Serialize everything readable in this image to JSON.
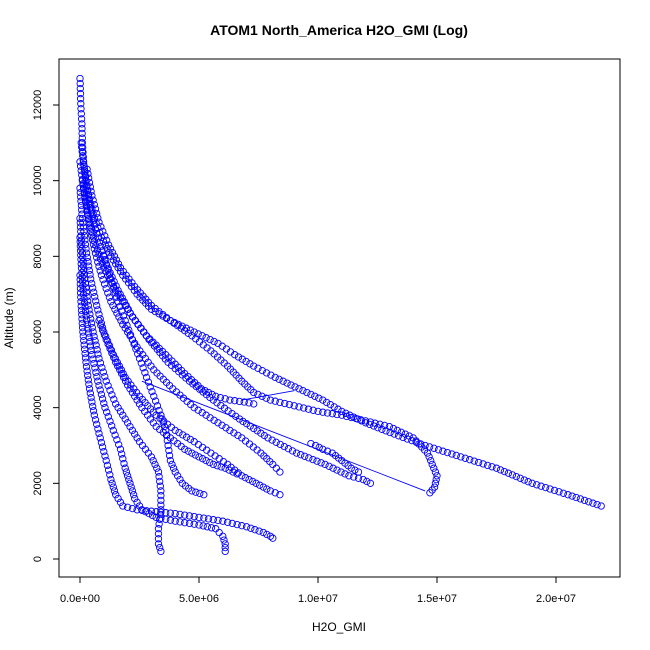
{
  "chart_data": {
    "type": "scatter",
    "title": "ATOM1 North_America H2O_GMI (Log)",
    "xlabel": "H2O_GMI",
    "ylabel": "Altitude (m)",
    "xlim": [
      0,
      22500000
    ],
    "ylim": [
      -400,
      13000
    ],
    "x_ticks": [
      0,
      5000000,
      10000000,
      15000000,
      20000000
    ],
    "x_tick_labels": [
      "0.0e+00",
      "5.0e+06",
      "1.0e+07",
      "1.5e+07",
      "2.0e+07"
    ],
    "y_ticks": [
      0,
      2000,
      4000,
      6000,
      8000,
      10000,
      12000
    ],
    "y_tick_labels": [
      "0",
      "2000",
      "4000",
      "6000",
      "8000",
      "10000",
      "12000"
    ],
    "grid": false,
    "marker": "open-circle",
    "color": "#0000ff",
    "series": [
      {
        "points": [
          [
            0,
            12700
          ],
          [
            20000,
            12300
          ],
          [
            40000,
            11900
          ],
          [
            80000,
            11500
          ],
          [
            100000,
            11000
          ],
          [
            150000,
            10500
          ],
          [
            250000,
            10000
          ],
          [
            400000,
            9500
          ],
          [
            600000,
            9000
          ],
          [
            900000,
            8500
          ],
          [
            1300000,
            8000
          ],
          [
            1800000,
            7500
          ],
          [
            2400000,
            7000
          ],
          [
            3000000,
            6600
          ],
          [
            3800000,
            6300
          ],
          [
            4800000,
            6000
          ],
          [
            5800000,
            5700
          ],
          [
            6500000,
            5400
          ],
          [
            7300000,
            5100
          ],
          [
            8200000,
            4800
          ],
          [
            9200000,
            4500
          ],
          [
            10200000,
            4200
          ],
          [
            11000000,
            3900
          ],
          [
            12000000,
            3600
          ],
          [
            13200000,
            3300
          ],
          [
            14500000,
            3000
          ],
          [
            16000000,
            2700
          ],
          [
            17500000,
            2400
          ],
          [
            19000000,
            2000
          ],
          [
            20500000,
            1700
          ],
          [
            21900000,
            1400
          ]
        ]
      },
      {
        "points": [
          [
            50000,
            11000
          ],
          [
            200000,
            10200
          ],
          [
            400000,
            9400
          ],
          [
            700000,
            8600
          ],
          [
            1100000,
            7800
          ],
          [
            1600000,
            7100
          ],
          [
            2200000,
            6400
          ],
          [
            2900000,
            5800
          ],
          [
            3700000,
            5200
          ],
          [
            4600000,
            4700
          ],
          [
            5600000,
            4200
          ],
          [
            6700000,
            3700
          ],
          [
            7900000,
            3200
          ],
          [
            9100000,
            2800
          ],
          [
            10300000,
            2500
          ],
          [
            11300000,
            2200
          ],
          [
            11900000,
            2100
          ],
          [
            12200000,
            2000
          ]
        ]
      },
      {
        "points": [
          [
            0,
            10500
          ],
          [
            150000,
            9800
          ],
          [
            350000,
            9000
          ],
          [
            600000,
            8200
          ],
          [
            900000,
            7500
          ],
          [
            1300000,
            6800
          ],
          [
            1800000,
            6200
          ],
          [
            2400000,
            5600
          ],
          [
            3100000,
            5000
          ],
          [
            3900000,
            4500
          ],
          [
            4800000,
            4000
          ],
          [
            5800000,
            3600
          ],
          [
            6800000,
            3200
          ],
          [
            7600000,
            2800
          ],
          [
            8100000,
            2500
          ],
          [
            8400000,
            2300
          ]
        ]
      },
      {
        "points": [
          [
            0,
            9800
          ],
          [
            100000,
            9000
          ],
          [
            250000,
            8200
          ],
          [
            450000,
            7400
          ],
          [
            700000,
            6700
          ],
          [
            1000000,
            6000
          ],
          [
            1400000,
            5400
          ],
          [
            1900000,
            4800
          ],
          [
            2500000,
            4300
          ],
          [
            3200000,
            3800
          ],
          [
            4000000,
            3400
          ],
          [
            4800000,
            3100
          ],
          [
            5500000,
            2800
          ],
          [
            6200000,
            2500
          ],
          [
            6800000,
            2200
          ],
          [
            7400000,
            2000
          ],
          [
            8000000,
            1800
          ],
          [
            8400000,
            1700
          ]
        ]
      },
      {
        "points": [
          [
            0,
            9000
          ],
          [
            80000,
            8200
          ],
          [
            200000,
            7400
          ],
          [
            350000,
            6700
          ],
          [
            550000,
            6000
          ],
          [
            800000,
            5300
          ],
          [
            1100000,
            4700
          ],
          [
            1500000,
            4100
          ],
          [
            2000000,
            3600
          ],
          [
            2500000,
            3100
          ],
          [
            3000000,
            2700
          ],
          [
            3300000,
            2300
          ],
          [
            3400000,
            1800
          ],
          [
            3400000,
            1300
          ],
          [
            3300000,
            800
          ],
          [
            3300000,
            400
          ],
          [
            3400000,
            200
          ]
        ]
      },
      {
        "points": [
          [
            0,
            8500
          ],
          [
            50000,
            7800
          ],
          [
            150000,
            7000
          ],
          [
            300000,
            6200
          ],
          [
            500000,
            5400
          ],
          [
            750000,
            4700
          ],
          [
            1050000,
            4000
          ],
          [
            1400000,
            3400
          ],
          [
            1700000,
            2900
          ],
          [
            1900000,
            2400
          ],
          [
            2100000,
            2000
          ],
          [
            2300000,
            1600
          ],
          [
            2600000,
            1300
          ],
          [
            3200000,
            1100
          ],
          [
            4000000,
            1000
          ],
          [
            5000000,
            900
          ],
          [
            5700000,
            800
          ],
          [
            6000000,
            600
          ],
          [
            6100000,
            400
          ],
          [
            6100000,
            200
          ]
        ]
      },
      {
        "points": [
          [
            0,
            7500
          ],
          [
            40000,
            6800
          ],
          [
            120000,
            6000
          ],
          [
            250000,
            5200
          ],
          [
            400000,
            4500
          ],
          [
            600000,
            3800
          ],
          [
            850000,
            3200
          ],
          [
            1100000,
            2600
          ],
          [
            1300000,
            2100
          ],
          [
            1500000,
            1700
          ],
          [
            1800000,
            1400
          ],
          [
            2400000,
            1300
          ],
          [
            3200000,
            1250
          ],
          [
            4000000,
            1200
          ],
          [
            5000000,
            1100
          ],
          [
            6000000,
            1000
          ],
          [
            7000000,
            850
          ],
          [
            7700000,
            700
          ],
          [
            8000000,
            600
          ],
          [
            8100000,
            550
          ]
        ]
      },
      {
        "points": [
          [
            300000,
            10300
          ],
          [
            500000,
            9600
          ],
          [
            800000,
            8900
          ],
          [
            1200000,
            8300
          ],
          [
            1700000,
            7700
          ],
          [
            2300000,
            7200
          ],
          [
            3000000,
            6700
          ],
          [
            3800000,
            6300
          ],
          [
            4700000,
            5900
          ],
          [
            5500000,
            5500
          ],
          [
            6200000,
            5100
          ],
          [
            6800000,
            4700
          ],
          [
            7300000,
            4400
          ],
          [
            8000000,
            4200
          ],
          [
            9000000,
            4050
          ],
          [
            10000000,
            3900
          ],
          [
            11000000,
            3800
          ],
          [
            12000000,
            3650
          ],
          [
            13000000,
            3500
          ],
          [
            14000000,
            3200
          ],
          [
            14600000,
            2800
          ],
          [
            14800000,
            2500
          ],
          [
            15000000,
            2200
          ],
          [
            14900000,
            1900
          ],
          [
            14700000,
            1750
          ]
        ]
      },
      {
        "points": [
          [
            100000,
            10000
          ],
          [
            300000,
            9200
          ],
          [
            600000,
            8400
          ],
          [
            1000000,
            7700
          ],
          [
            1500000,
            7100
          ],
          [
            2100000,
            6500
          ],
          [
            2800000,
            5900
          ],
          [
            3600000,
            5400
          ],
          [
            4400000,
            4900
          ],
          [
            5100000,
            4500
          ],
          [
            5700000,
            4300
          ],
          [
            6300000,
            4200
          ],
          [
            6900000,
            4150
          ],
          [
            7300000,
            4100
          ]
        ]
      },
      {
        "points": [
          [
            1000000,
            8000
          ],
          [
            1300000,
            7400
          ],
          [
            1600000,
            6800
          ],
          [
            1900000,
            6300
          ],
          [
            2200000,
            5800
          ],
          [
            2500000,
            5300
          ],
          [
            2800000,
            4800
          ],
          [
            3100000,
            4300
          ],
          [
            3400000,
            3800
          ],
          [
            3600000,
            3400
          ],
          [
            3700000,
            3000
          ],
          [
            3800000,
            2600
          ],
          [
            4000000,
            2300
          ],
          [
            4300000,
            2000
          ],
          [
            4700000,
            1800
          ],
          [
            5200000,
            1700
          ]
        ]
      },
      {
        "points": [
          [
            800000,
            6300
          ],
          [
            1100000,
            5800
          ],
          [
            1500000,
            5200
          ],
          [
            2000000,
            4600
          ],
          [
            2600000,
            4000
          ],
          [
            3200000,
            3500
          ],
          [
            3800000,
            3200
          ],
          [
            4400000,
            2900
          ],
          [
            5000000,
            2700
          ],
          [
            5600000,
            2500
          ],
          [
            6100000,
            2400
          ],
          [
            6600000,
            2250
          ]
        ]
      },
      {
        "points": [
          [
            9700000,
            3050
          ],
          [
            9900000,
            3000
          ],
          [
            10200000,
            2900
          ],
          [
            10600000,
            2800
          ],
          [
            11000000,
            2600
          ],
          [
            11400000,
            2400
          ],
          [
            11700000,
            2300
          ]
        ]
      }
    ]
  }
}
